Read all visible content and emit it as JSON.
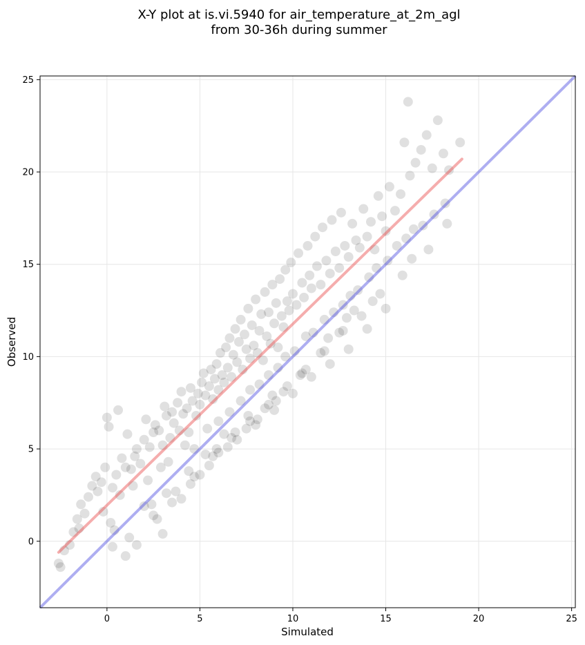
{
  "chart_data": {
    "type": "scatter",
    "title_lines": [
      "X-Y plot at is.vi.5940 for air_temperature_at_2m_agl",
      "from 30-36h during summer"
    ],
    "xlabel": "Simulated",
    "ylabel": "Observed",
    "xlim": [
      -3.6,
      25.2
    ],
    "ylim": [
      -3.6,
      25.2
    ],
    "xticks": [
      0,
      5,
      10,
      15,
      20,
      25
    ],
    "yticks": [
      0,
      5,
      10,
      15,
      20,
      25
    ],
    "grid": true,
    "colors": {
      "points": "#000000",
      "fit_line": "#e84a4a",
      "identity_line": "#4b4bdf",
      "grid": "#e6e6e6"
    },
    "identity_line": {
      "x": [
        -3.6,
        25.2
      ],
      "y": [
        -3.6,
        25.2
      ]
    },
    "fit_line": {
      "x": [
        -2.6,
        19.1
      ],
      "y": [
        -0.6,
        20.7
      ]
    },
    "points": {
      "x": [
        -2.5,
        -2.3,
        -2.0,
        -1.8,
        -1.6,
        -1.4,
        -1.2,
        -1.0,
        -0.8,
        -0.6,
        -0.5,
        -0.3,
        -0.1,
        0.0,
        0.1,
        0.3,
        0.5,
        0.6,
        0.8,
        1.0,
        1.1,
        1.3,
        1.5,
        1.6,
        1.8,
        2.0,
        2.1,
        2.3,
        2.5,
        2.6,
        2.8,
        3.0,
        3.1,
        3.2,
        3.4,
        3.5,
        3.6,
        3.8,
        3.9,
        4.0,
        4.1,
        4.3,
        4.4,
        4.5,
        4.6,
        4.8,
        4.9,
        5.0,
        5.1,
        5.2,
        5.3,
        5.5,
        5.6,
        5.7,
        5.8,
        5.9,
        6.0,
        6.1,
        6.2,
        6.3,
        6.4,
        6.5,
        6.6,
        6.7,
        6.8,
        6.9,
        7.0,
        7.1,
        7.2,
        7.3,
        7.4,
        7.5,
        7.6,
        7.7,
        7.8,
        7.9,
        8.0,
        8.1,
        8.2,
        8.3,
        8.4,
        8.5,
        8.6,
        8.7,
        8.8,
        8.9,
        9.0,
        9.1,
        9.2,
        9.3,
        9.4,
        9.5,
        9.6,
        9.7,
        9.8,
        9.9,
        10.0,
        10.2,
        10.3,
        10.5,
        10.6,
        10.8,
        10.9,
        11.0,
        11.2,
        11.3,
        11.5,
        11.6,
        11.8,
        12.0,
        12.1,
        12.3,
        12.5,
        12.6,
        12.8,
        13.0,
        13.2,
        13.4,
        13.6,
        13.8,
        14.0,
        14.2,
        14.4,
        14.6,
        14.8,
        15.0,
        15.2,
        15.5,
        15.8,
        16.0,
        16.3,
        16.6,
        16.9,
        17.2,
        17.5,
        17.8,
        18.1,
        18.4,
        19.0,
        16.2,
        -0.2,
        0.2,
        0.7,
        1.4,
        2.2,
        2.9,
        3.3,
        4.2,
        4.7,
        5.4,
        6.0,
        6.6,
        7.2,
        7.7,
        8.2,
        8.7,
        9.2,
        9.6,
        10.1,
        10.7,
        11.1,
        11.7,
        12.2,
        12.7,
        13.1,
        13.5,
        14.1,
        14.5,
        15.1,
        15.6,
        16.1,
        16.5,
        17.0,
        17.6,
        18.2,
        1.0,
        2.0,
        3.0,
        4.0,
        5.0,
        6.0,
        7.0,
        8.0,
        9.0,
        10.0,
        11.0,
        12.0,
        13.0,
        14.0,
        15.0,
        3.5,
        4.5,
        5.5,
        6.5,
        7.5,
        8.5,
        9.5,
        10.5,
        11.5,
        12.5,
        2.7,
        3.7,
        4.7,
        5.7,
        6.7,
        7.7,
        8.7,
        9.7,
        10.7,
        11.7,
        12.7,
        13.7,
        14.7,
        0.4,
        1.6,
        2.4,
        5.3,
        6.3,
        8.1,
        9.1,
        11.9,
        13.3,
        16.4,
        17.3,
        18.3,
        15.9,
        14.3,
        12.9,
        10.4,
        7.6,
        5.9,
        4.4,
        3.2,
        2.5,
        1.2,
        0.3,
        -1.5,
        -2.6,
        6.9,
        8.9
      ],
      "y": [
        -1.4,
        -0.5,
        -0.2,
        0.5,
        1.2,
        2.0,
        1.5,
        2.4,
        3.0,
        3.5,
        2.7,
        3.2,
        4.0,
        6.7,
        6.2,
        2.9,
        3.6,
        7.1,
        4.5,
        4.0,
        5.8,
        3.9,
        4.6,
        5.0,
        4.2,
        5.5,
        6.6,
        5.1,
        5.9,
        6.3,
        6.0,
        5.2,
        7.3,
        6.8,
        5.6,
        7.0,
        6.4,
        7.5,
        6.0,
        8.1,
        6.9,
        7.2,
        5.9,
        8.3,
        7.6,
        6.8,
        8.0,
        7.4,
        8.6,
        9.1,
        7.9,
        8.4,
        9.3,
        7.7,
        8.8,
        9.6,
        8.2,
        10.2,
        9.0,
        8.6,
        10.5,
        9.4,
        11.0,
        8.9,
        10.1,
        11.5,
        9.7,
        10.8,
        12.0,
        9.3,
        11.2,
        10.4,
        12.6,
        9.9,
        11.7,
        10.6,
        13.1,
        10.2,
        11.4,
        12.3,
        9.8,
        13.5,
        11.1,
        12.4,
        10.7,
        13.9,
        11.8,
        12.9,
        10.5,
        14.2,
        12.2,
        11.6,
        14.7,
        13.0,
        12.5,
        15.1,
        13.4,
        12.8,
        15.6,
        14.0,
        13.2,
        16.0,
        14.4,
        13.7,
        16.5,
        14.9,
        13.9,
        17.0,
        15.2,
        14.5,
        17.4,
        15.7,
        14.8,
        17.8,
        16.0,
        15.4,
        17.2,
        16.3,
        15.9,
        18.0,
        16.5,
        17.3,
        15.8,
        18.7,
        17.6,
        16.8,
        19.2,
        17.9,
        18.8,
        21.6,
        19.8,
        20.5,
        21.2,
        22.0,
        20.2,
        22.8,
        21.0,
        20.1,
        21.6,
        23.8,
        1.6,
        1.0,
        2.5,
        3.0,
        3.3,
        4.0,
        4.3,
        5.2,
        5.0,
        6.1,
        6.5,
        7.0,
        7.6,
        8.2,
        8.5,
        9.0,
        9.4,
        10.0,
        10.3,
        11.1,
        11.3,
        12.0,
        12.4,
        12.8,
        13.3,
        13.6,
        14.3,
        14.8,
        15.2,
        16.0,
        16.4,
        16.9,
        17.1,
        17.7,
        18.3,
        -0.8,
        1.9,
        0.4,
        2.3,
        3.6,
        4.8,
        5.5,
        6.3,
        7.1,
        8.0,
        8.9,
        9.6,
        10.4,
        11.5,
        12.6,
        2.1,
        3.1,
        4.1,
        5.1,
        6.1,
        7.2,
        8.1,
        9.1,
        10.2,
        11.3,
        1.2,
        2.7,
        3.5,
        4.6,
        5.6,
        6.5,
        7.4,
        8.4,
        9.3,
        10.3,
        11.4,
        12.2,
        13.4,
        0.6,
        -0.2,
        2.0,
        4.7,
        5.8,
        6.6,
        7.6,
        11.0,
        12.5,
        15.3,
        15.8,
        17.2,
        14.4,
        13.0,
        12.1,
        9.0,
        6.8,
        5.0,
        3.8,
        2.6,
        1.4,
        0.2,
        -0.3,
        0.7,
        -1.2,
        5.9,
        7.9
      ]
    }
  }
}
